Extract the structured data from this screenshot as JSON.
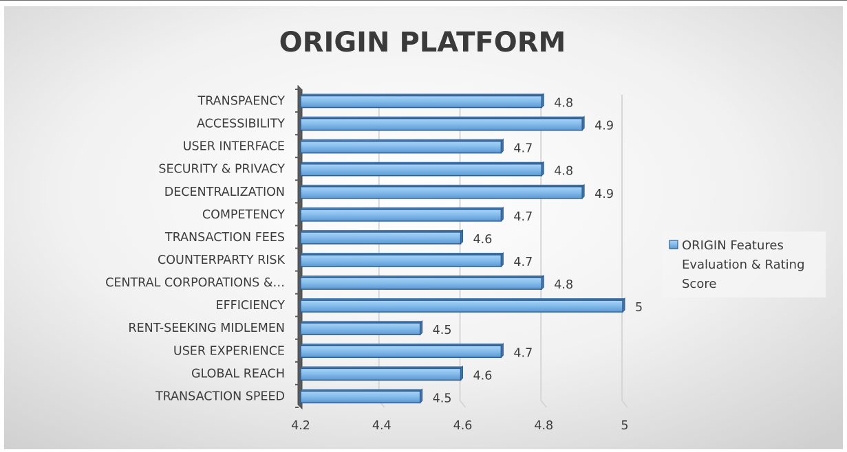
{
  "chart_data": {
    "type": "bar",
    "orientation": "horizontal",
    "title": "ORIGIN PLATFORM",
    "categories": [
      "TRANSPAENCY",
      "ACCESSIBILITY",
      "USER INTERFACE",
      "SECURITY & PRIVACY",
      "DECENTRALIZATION",
      "COMPETENCY",
      "TRANSACTION FEES",
      "COUNTERPARTY RISK",
      "CENTRAL CORPORATIONS &…",
      "EFFICIENCY",
      "RENT-SEEKING MIDLEMEN",
      "USER EXPERIENCE",
      "GLOBAL REACH",
      "TRANSACTION SPEED"
    ],
    "series": [
      {
        "name": "ORIGIN Features Evaluation & Rating Score",
        "values": [
          4.8,
          4.9,
          4.7,
          4.8,
          4.9,
          4.7,
          4.6,
          4.7,
          4.8,
          5,
          4.5,
          4.7,
          4.6,
          4.5
        ]
      }
    ],
    "xlim": [
      4.2,
      5
    ],
    "xticks": [
      "4.2",
      "4.4",
      "4.6",
      "4.8",
      "5"
    ],
    "grid": true,
    "legend_position": "right",
    "colors": {
      "bar_fill_light": "#9fcdf4",
      "bar_fill_dark": "#5b9bd5",
      "bar_edge": "#2f5f93",
      "background_light": "#ffffff",
      "background_dark": "#d2d2d2"
    }
  }
}
